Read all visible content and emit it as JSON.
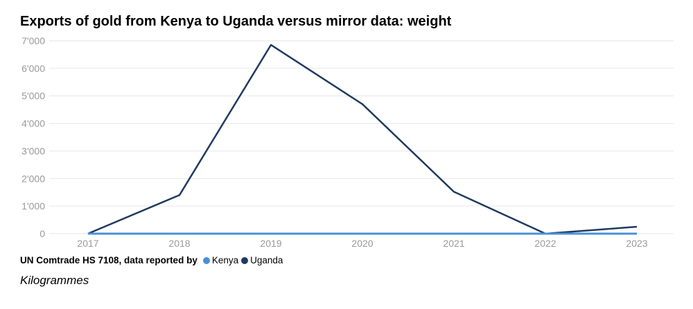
{
  "chart_data": {
    "type": "line",
    "title": "Exports of gold from Kenya to Uganda versus mirror data: weight",
    "xlabel": "",
    "ylabel": "",
    "unit_note": "Kilogrammes",
    "categories": [
      "2017",
      "2018",
      "2019",
      "2020",
      "2021",
      "2022",
      "2023"
    ],
    "yticks": [
      0,
      1000,
      2000,
      3000,
      4000,
      5000,
      6000,
      7000
    ],
    "ytick_labels": [
      "0",
      "1'000",
      "2'000",
      "3'000",
      "4'000",
      "5'000",
      "6'000",
      "7'000"
    ],
    "ylim": [
      0,
      7000
    ],
    "grid": true,
    "legend_prefix": "UN Comtrade HS 7108, data reported by",
    "legend_position": "bottom-left",
    "series": [
      {
        "name": "Kenya",
        "color": "#4a90d9",
        "values": [
          0,
          0,
          0,
          0,
          0,
          0,
          0
        ]
      },
      {
        "name": "Uganda",
        "color": "#1f3a5f",
        "values": [
          0,
          1400,
          6850,
          4700,
          1520,
          0,
          250
        ]
      }
    ]
  }
}
